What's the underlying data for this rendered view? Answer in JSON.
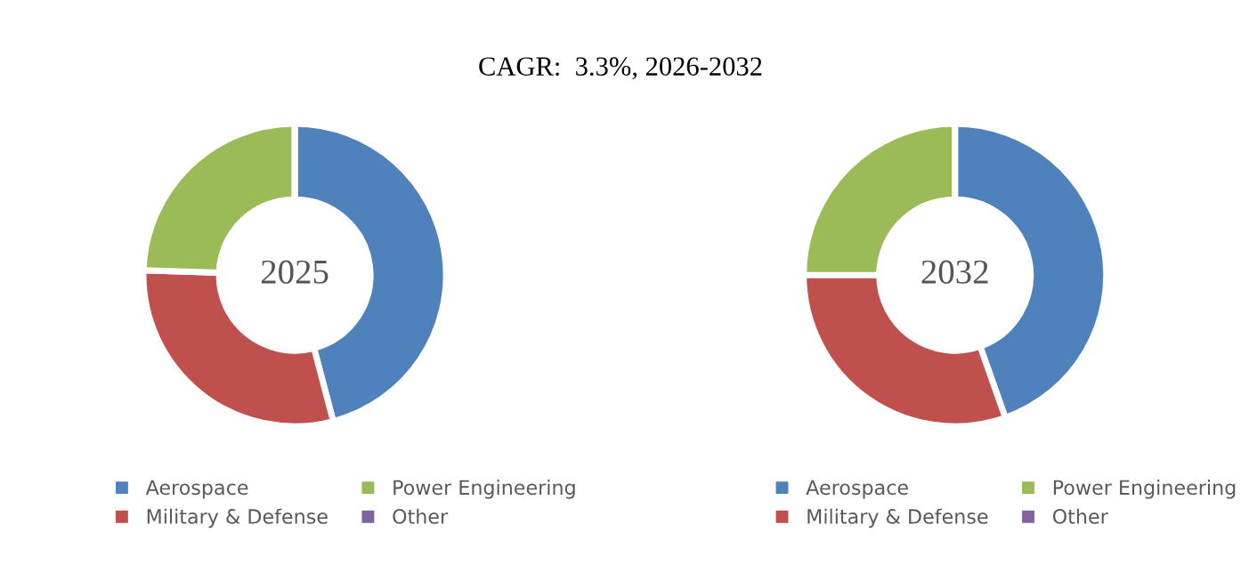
{
  "chart_data": [
    {
      "type": "donut",
      "title": "CAGR:  3.3%, 2026-2032",
      "annotations": [
        "2025"
      ],
      "categories": [
        "Aerospace",
        "Military & Defense",
        "Power Engineering",
        "Other"
      ],
      "values": [
        45.9,
        29.6,
        24.5,
        0
      ],
      "colors": [
        "#4f81bd",
        "#c0504d",
        "#9bbb59",
        "#8064a2"
      ],
      "legend": "bottom"
    },
    {
      "type": "donut",
      "annotations": [
        "2032"
      ],
      "categories": [
        "Aerospace",
        "Military & Defense",
        "Power Engineering",
        "Other"
      ],
      "values": [
        44.6,
        30.4,
        25.0,
        0
      ],
      "colors": [
        "#4f81bd",
        "#c0504d",
        "#9bbb59",
        "#8064a2"
      ],
      "legend": "bottom"
    }
  ]
}
